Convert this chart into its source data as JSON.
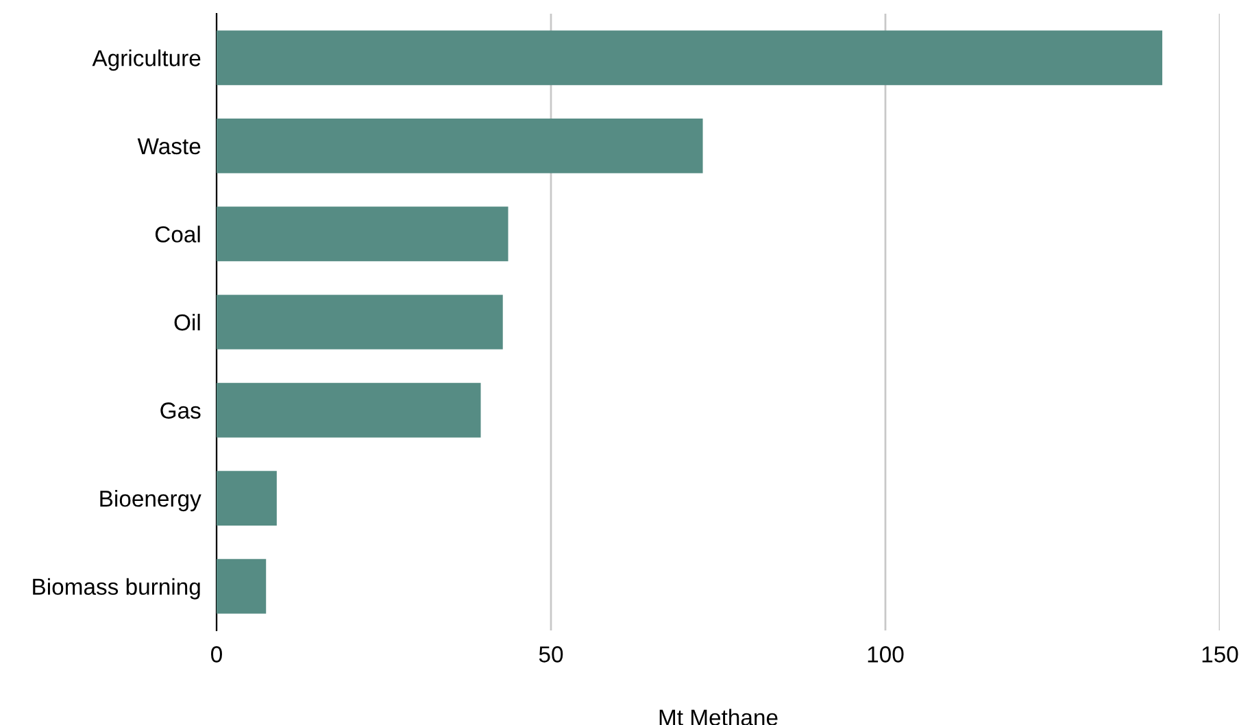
{
  "chart_data": {
    "type": "bar",
    "orientation": "horizontal",
    "xlabel": "Mt Methane",
    "categories": [
      "Agriculture",
      "Waste",
      "Coal",
      "Oil",
      "Gas",
      "Bioenergy",
      "Biomass burning"
    ],
    "values": [
      141.4,
      72.7,
      43.6,
      42.8,
      39.5,
      9.0,
      7.4
    ],
    "color": "#568c84",
    "xlim": [
      0,
      150
    ],
    "xticks": [
      0,
      50,
      100,
      150
    ],
    "grid": "x"
  }
}
